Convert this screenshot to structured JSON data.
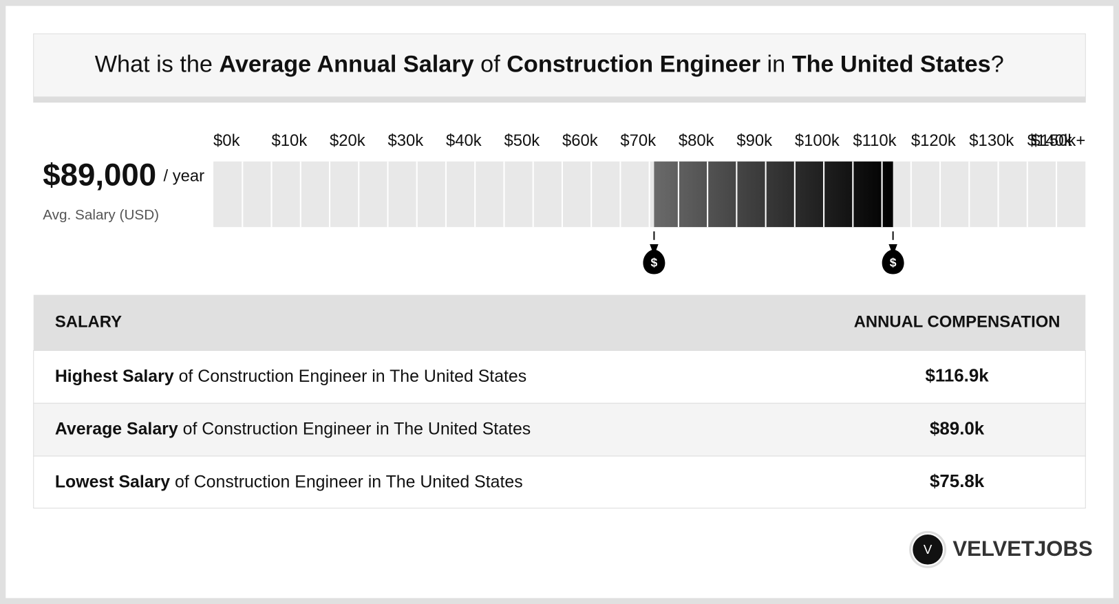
{
  "title": {
    "parts": [
      "What is the ",
      "Average Annual Salary",
      " of ",
      "Construction Engineer",
      " in ",
      "The United States",
      "?"
    ]
  },
  "summary": {
    "value": "$89,000",
    "unit": "/ year",
    "label": "Avg. Salary (USD)"
  },
  "chart_data": {
    "type": "range",
    "xlim": [
      0,
      150
    ],
    "xticks": [
      {
        "value": 0,
        "label": "$0k"
      },
      {
        "value": 10,
        "label": "$10k"
      },
      {
        "value": 20,
        "label": "$20k"
      },
      {
        "value": 30,
        "label": "$30k"
      },
      {
        "value": 40,
        "label": "$40k"
      },
      {
        "value": 50,
        "label": "$50k"
      },
      {
        "value": 60,
        "label": "$60k"
      },
      {
        "value": 70,
        "label": "$70k"
      },
      {
        "value": 80,
        "label": "$80k"
      },
      {
        "value": 90,
        "label": "$90k"
      },
      {
        "value": 100,
        "label": "$100k"
      },
      {
        "value": 110,
        "label": "$110k"
      },
      {
        "value": 120,
        "label": "$120k"
      },
      {
        "value": 130,
        "label": "$130k"
      },
      {
        "value": 140,
        "label": "$140k"
      },
      {
        "value": 150,
        "label": "$150k+"
      }
    ],
    "low": 75.8,
    "high": 116.9,
    "marker_label": "$"
  },
  "table": {
    "header": [
      "SALARY",
      "ANNUAL COMPENSATION"
    ],
    "rows": [
      [
        {
          "bold": "Highest Salary",
          "text": " of Construction Engineer in The United States"
        },
        "$116.9k"
      ],
      [
        {
          "bold": "Average Salary",
          "text": " of Construction Engineer in The United States"
        },
        "$89.0k"
      ],
      [
        {
          "bold": "Lowest Salary",
          "text": " of Construction Engineer in The United States"
        },
        "$75.8k"
      ]
    ]
  },
  "logo": {
    "mark": "V",
    "name": "VELVETJOBS"
  }
}
